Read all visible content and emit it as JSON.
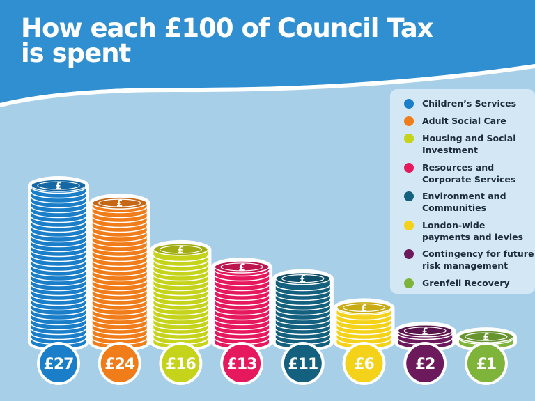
{
  "title_lines": [
    "How each £100 of Council Tax",
    "is spent"
  ],
  "chart_data": {
    "type": "bar",
    "title": "How each £100 of Council Tax is spent",
    "categories": [
      "Children’s Services",
      "Adult Social Care",
      "Housing and Social Investment",
      "Resources and Corporate Services",
      "Environment and Communities",
      "London-wide payments and levies",
      "Contingency for future risk management",
      "Grenfell Recovery"
    ],
    "values": [
      27,
      24,
      16,
      13,
      11,
      6,
      2,
      1
    ],
    "value_labels": [
      "£27",
      "£24",
      "£16",
      "£13",
      "£11",
      "£6",
      "£2",
      "£1"
    ],
    "colors": [
      "#1a7fc8",
      "#f07d1a",
      "#c5d31a",
      "#e6195e",
      "#14607f",
      "#f5d21a",
      "#6d1a5c",
      "#7fb43a"
    ],
    "coin_symbol": "£",
    "legend": {
      "position": "top-right",
      "entries": [
        {
          "lines": [
            "Children’s Services"
          ],
          "color": "#1a7fc8"
        },
        {
          "lines": [
            "Adult Social Care"
          ],
          "color": "#f07d1a"
        },
        {
          "lines": [
            "Housing and Social",
            "Investment"
          ],
          "color": "#c5d31a"
        },
        {
          "lines": [
            "Resources and",
            "Corporate Services"
          ],
          "color": "#e6195e"
        },
        {
          "lines": [
            "Environment and",
            "Communities"
          ],
          "color": "#14607f"
        },
        {
          "lines": [
            "London-wide",
            "payments and levies"
          ],
          "color": "#f5d21a"
        },
        {
          "lines": [
            "Contingency for future",
            "risk management"
          ],
          "color": "#6d1a5c"
        },
        {
          "lines": [
            "Grenfell Recovery"
          ],
          "color": "#7fb43a"
        }
      ]
    }
  }
}
